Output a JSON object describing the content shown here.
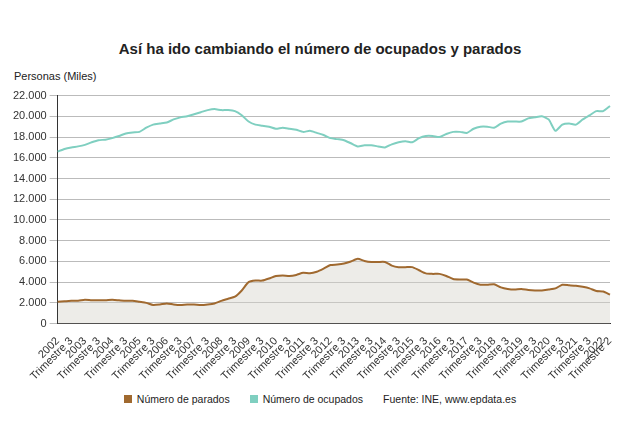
{
  "chart_data": {
    "type": "line",
    "title": "Así ha ido cambiando el número de ocupados y parados",
    "y_label": "Personas (Miles)",
    "source": "Fuente: INE, www.epdata.es",
    "categories": [
      "2002",
      null,
      "Trimestre 3",
      null,
      "2003",
      null,
      "Trimestre 3",
      null,
      "2004",
      null,
      "Trimestre 3",
      null,
      "2005",
      null,
      "Trimestre 3",
      null,
      "2006",
      null,
      "Trimestre 3",
      null,
      "2007",
      null,
      "Trimestre 3",
      null,
      "2008",
      null,
      "Trimestre 3",
      null,
      "2009",
      null,
      "Trimestre 3",
      null,
      "2010",
      null,
      "Trimestre 3",
      null,
      "2011",
      null,
      "Trimestre 3",
      null,
      "2012",
      null,
      "Trimestre 3",
      null,
      "2013",
      null,
      "Trimestre 3",
      null,
      "2014",
      null,
      "Trimestre 3",
      null,
      "2015",
      null,
      "Trimestre 3",
      null,
      "2016",
      null,
      "Trimestre 3",
      null,
      "2017",
      null,
      "Trimestre 3",
      null,
      "2018",
      null,
      "Trimestre 3",
      null,
      "2019",
      null,
      "Trimestre 3",
      null,
      "2020",
      null,
      "Trimestre 3",
      null,
      "2021",
      null,
      "Trimestre 3",
      null,
      "2022",
      "Trimestre 2"
    ],
    "series": [
      {
        "name": "Número de parados",
        "color": "#a0692f",
        "values": [
          2100,
          2150,
          2200,
          2200,
          2300,
          2250,
          2250,
          2250,
          2300,
          2250,
          2200,
          2200,
          2100,
          2000,
          1800,
          1850,
          1950,
          1850,
          1800,
          1850,
          1850,
          1800,
          1850,
          1950,
          2200,
          2400,
          2600,
          3200,
          4000,
          4150,
          4150,
          4350,
          4600,
          4650,
          4600,
          4700,
          4900,
          4850,
          5000,
          5300,
          5650,
          5700,
          5800,
          6000,
          6250,
          6050,
          5950,
          5950,
          5950,
          5600,
          5450,
          5450,
          5450,
          5150,
          4850,
          4800,
          4800,
          4600,
          4300,
          4250,
          4250,
          3950,
          3750,
          3750,
          3800,
          3500,
          3350,
          3300,
          3350,
          3250,
          3200,
          3200,
          3300,
          3400,
          3750,
          3700,
          3650,
          3550,
          3400,
          3150,
          3100,
          2800
        ]
      },
      {
        "name": "Número de ocupados",
        "color": "#7fcfc0",
        "values": [
          16600,
          16850,
          17000,
          17100,
          17250,
          17500,
          17700,
          17750,
          17900,
          18100,
          18350,
          18450,
          18500,
          18900,
          19200,
          19300,
          19400,
          19700,
          19900,
          20000,
          20200,
          20400,
          20600,
          20700,
          20600,
          20600,
          20500,
          20100,
          19500,
          19200,
          19100,
          19000,
          18800,
          18900,
          18800,
          18700,
          18500,
          18600,
          18400,
          18200,
          17900,
          17800,
          17700,
          17400,
          17100,
          17200,
          17200,
          17100,
          17000,
          17300,
          17500,
          17600,
          17500,
          17900,
          18100,
          18100,
          18000,
          18300,
          18500,
          18500,
          18400,
          18800,
          19000,
          19000,
          18900,
          19300,
          19500,
          19500,
          19500,
          19800,
          19900,
          20000,
          19700,
          18600,
          19200,
          19300,
          19200,
          19700,
          20100,
          20500,
          20500,
          21000
        ]
      }
    ],
    "ylim": [
      0,
      22000
    ],
    "yticks": [
      0,
      {
        "value": 2000,
        "label": "2.000"
      },
      {
        "value": 4000,
        "label": "4.000"
      },
      {
        "value": 6000,
        "label": "6.000"
      },
      {
        "value": 8000,
        "label": "8.000"
      },
      {
        "value": 10000,
        "label": "10.000"
      },
      {
        "value": 12000,
        "label": "12.000"
      },
      {
        "value": 14000,
        "label": "14.000"
      },
      {
        "value": 16000,
        "label": "16.000"
      },
      {
        "value": 18000,
        "label": "18.000"
      },
      {
        "value": 20000,
        "label": "20.000"
      },
      {
        "value": 22000,
        "label": "22.000"
      }
    ],
    "grid": true,
    "legend": "bottom"
  }
}
